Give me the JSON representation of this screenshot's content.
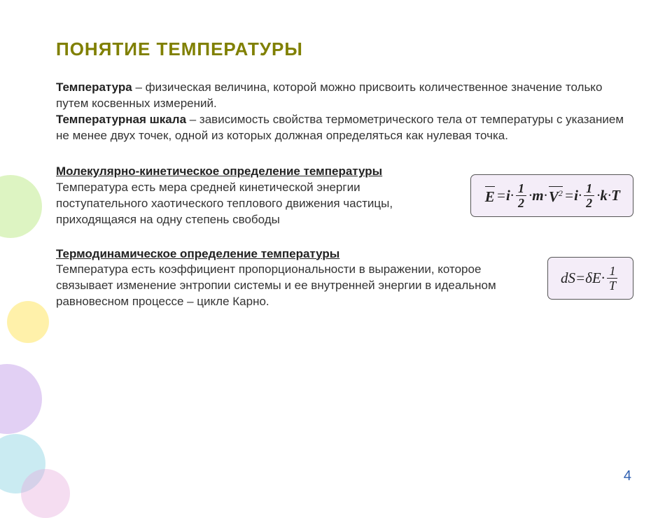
{
  "title": "ПОНЯТИЕ ТЕМПЕРАТУРЫ",
  "intro": {
    "term1": "Температура",
    "def1_a": " – физическая величина, которой можно присвоить количественное значение только путем косвенных измерений.",
    "term2": "Температурная шкала",
    "def2_a": " – зависимость свойства термометрического тела от температуры с указанием не менее двух точек, одной из которых должная определяться как нулевая точка."
  },
  "sec1": {
    "head": "Молекулярно-кинетическое определение температуры",
    "body": "Температура есть мера средней кинетической энергии поступательного хаотического теплового движения частицы, приходящаяся на одну степень свободы",
    "formula": {
      "E": "E",
      "eq": " = ",
      "i": "i",
      "dot": " · ",
      "half_num": "1",
      "half_den": "2",
      "m": "m",
      "V": "V",
      "sq": "2",
      "k": "k",
      "T": "T"
    }
  },
  "sec2": {
    "head": "Термодинамическое определение температуры",
    "body": "Температура есть коэффициент пропорциональности в выражении, которое связывает изменение энтропии системы и ее внутренней энергии в идеальном равновесном  процессе – цикле Карно.",
    "formula": {
      "dS": "dS",
      "eq": " = ",
      "dE": "δE",
      "dot": " · ",
      "num": "1",
      "den": "T"
    }
  },
  "page": "4",
  "colors": {
    "title": "#808000",
    "formula_bg": "#f4edf8",
    "formula_border": "#555",
    "text": "#333",
    "pagenum": "#2e5fb0"
  }
}
